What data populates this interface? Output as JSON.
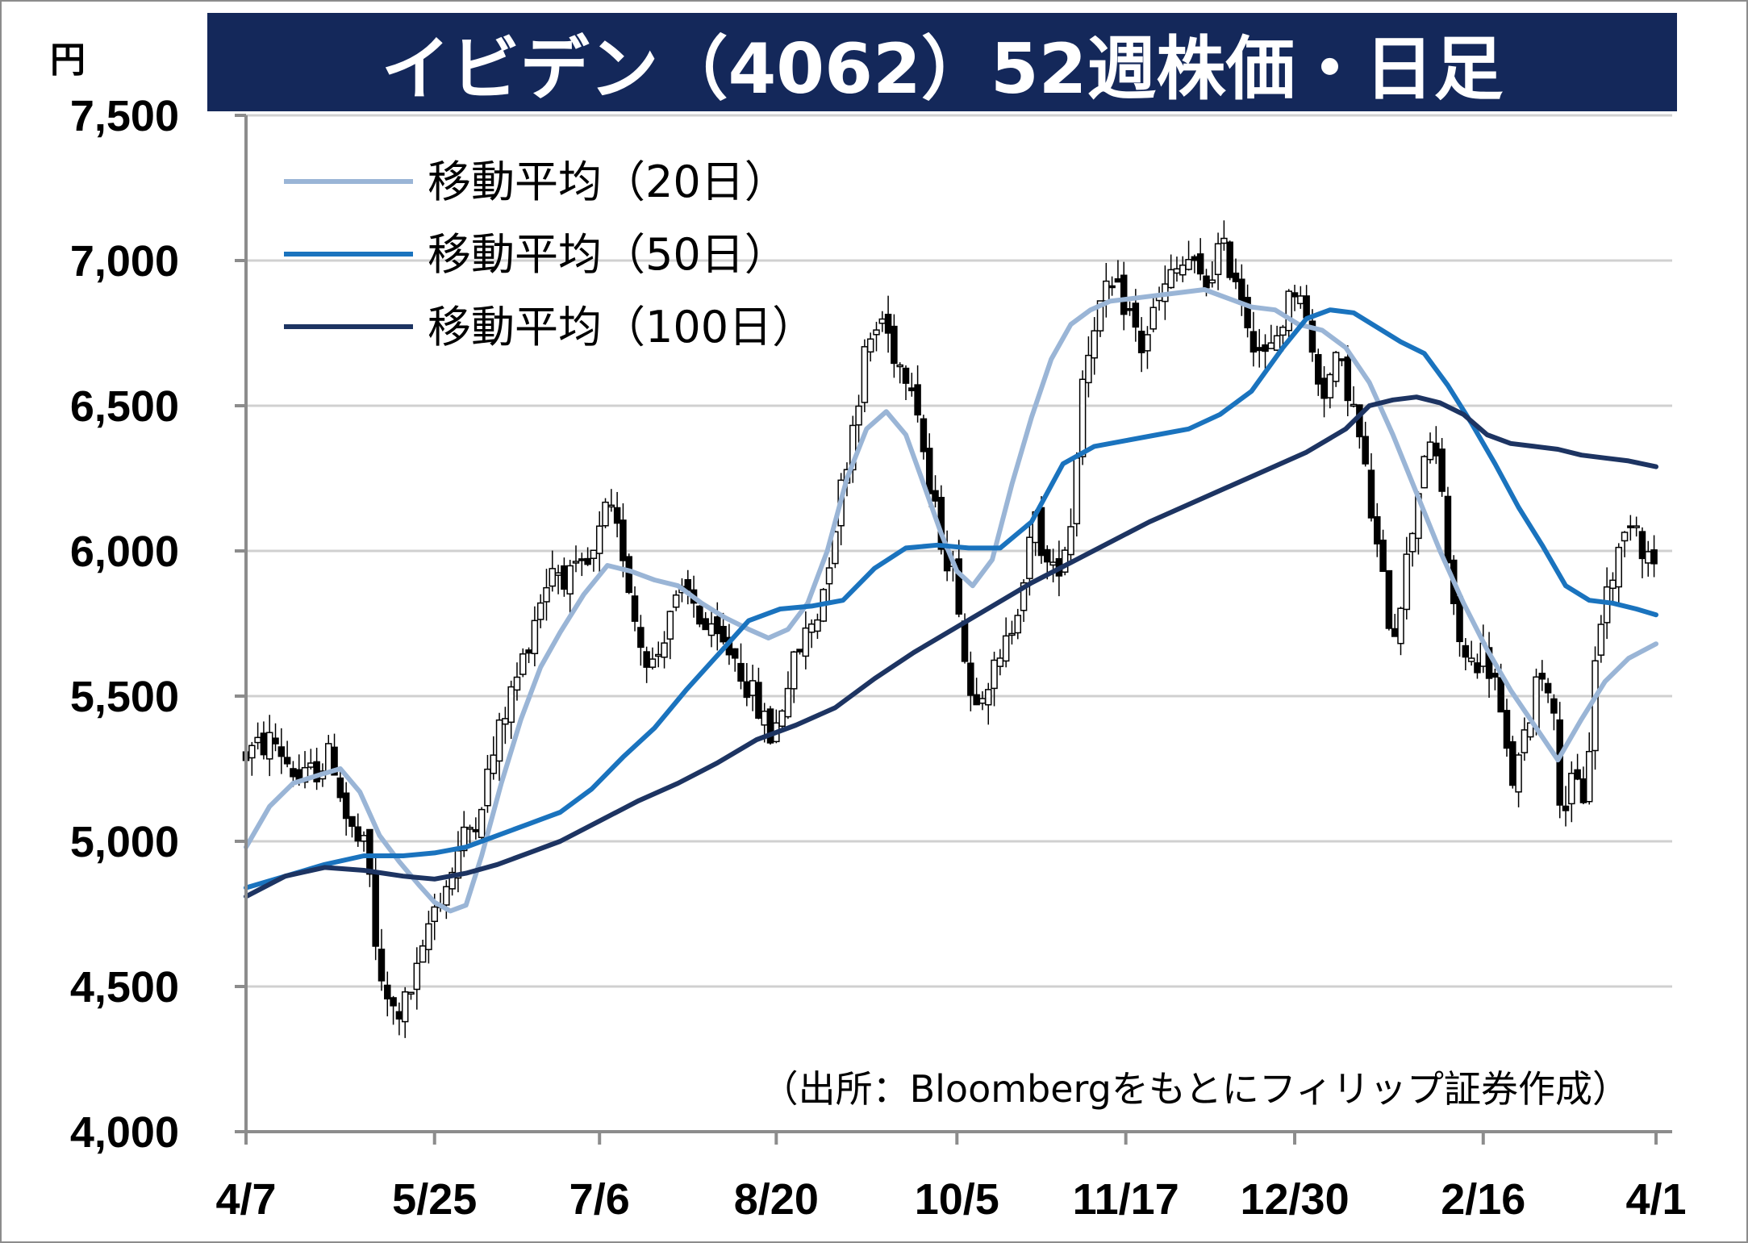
{
  "title": "イビデン（4062）52週株価・日足",
  "unit_label": "円",
  "source_note": "（出所：Bloombergをもとにフィリップ証券作成）",
  "chart_data": {
    "type": "candlestick",
    "title": "イビデン（4062）52週株価・日足",
    "ylabel": "円",
    "ylim": [
      4000,
      7500
    ],
    "yticks": [
      4000,
      4500,
      5000,
      5500,
      6000,
      6500,
      7000,
      7500
    ],
    "ytick_labels": [
      "4,000",
      "4,500",
      "5,000",
      "5,500",
      "6,000",
      "6,500",
      "7,000",
      "7,500"
    ],
    "x_range_days": [
      0,
      359
    ],
    "xticks": [
      {
        "label": "4/7",
        "day": 0
      },
      {
        "label": "5/25",
        "day": 48
      },
      {
        "label": "7/6",
        "day": 90
      },
      {
        "label": "8/20",
        "day": 135
      },
      {
        "label": "10/5",
        "day": 181
      },
      {
        "label": "11/17",
        "day": 224
      },
      {
        "label": "12/30",
        "day": 267
      },
      {
        "label": "2/16",
        "day": 315
      },
      {
        "label": "4/1",
        "day": 359
      }
    ],
    "grid": true,
    "legend_position": "top-left",
    "price_path": [
      [
        0,
        5300
      ],
      [
        7,
        5350
      ],
      [
        14,
        5200
      ],
      [
        22,
        5300
      ],
      [
        26,
        5050
      ],
      [
        31,
        4950
      ],
      [
        34,
        4500
      ],
      [
        38,
        4400
      ],
      [
        41,
        4450
      ],
      [
        45,
        4600
      ],
      [
        47,
        4750
      ],
      [
        51,
        4850
      ],
      [
        55,
        5000
      ],
      [
        59,
        5100
      ],
      [
        63,
        5300
      ],
      [
        66,
        5450
      ],
      [
        70,
        5600
      ],
      [
        74,
        5800
      ],
      [
        78,
        5950
      ],
      [
        83,
        5900
      ],
      [
        88,
        5950
      ],
      [
        92,
        6150
      ],
      [
        96,
        6000
      ],
      [
        100,
        5700
      ],
      [
        104,
        5600
      ],
      [
        108,
        5800
      ],
      [
        113,
        5850
      ],
      [
        118,
        5700
      ],
      [
        124,
        5650
      ],
      [
        129,
        5500
      ],
      [
        134,
        5350
      ],
      [
        138,
        5550
      ],
      [
        142,
        5700
      ],
      [
        146,
        5800
      ],
      [
        150,
        6100
      ],
      [
        154,
        6400
      ],
      [
        158,
        6700
      ],
      [
        162,
        6800
      ],
      [
        166,
        6650
      ],
      [
        170,
        6600
      ],
      [
        174,
        6200
      ],
      [
        178,
        6000
      ],
      [
        181,
        5900
      ],
      [
        184,
        5500
      ],
      [
        188,
        5550
      ],
      [
        192,
        5600
      ],
      [
        196,
        5800
      ],
      [
        201,
        6100
      ],
      [
        205,
        5900
      ],
      [
        208,
        6000
      ],
      [
        210,
        6100
      ],
      [
        213,
        6600
      ],
      [
        216,
        6800
      ],
      [
        220,
        6900
      ],
      [
        224,
        6850
      ],
      [
        228,
        6700
      ],
      [
        232,
        6850
      ],
      [
        236,
        6950
      ],
      [
        240,
        7000
      ],
      [
        244,
        6900
      ],
      [
        248,
        7050
      ],
      [
        252,
        6950
      ],
      [
        256,
        6750
      ],
      [
        260,
        6650
      ],
      [
        264,
        6800
      ],
      [
        268,
        6950
      ],
      [
        271,
        6700
      ],
      [
        274,
        6550
      ],
      [
        278,
        6650
      ],
      [
        281,
        6550
      ],
      [
        284,
        6350
      ],
      [
        288,
        6000
      ],
      [
        292,
        5700
      ],
      [
        296,
        6000
      ],
      [
        300,
        6350
      ],
      [
        304,
        6300
      ],
      [
        307,
        5800
      ],
      [
        311,
        5600
      ],
      [
        315,
        5650
      ],
      [
        318,
        5550
      ],
      [
        322,
        5200
      ],
      [
        325,
        5300
      ],
      [
        329,
        5600
      ],
      [
        332,
        5550
      ],
      [
        335,
        5100
      ],
      [
        338,
        5200
      ],
      [
        341,
        5150
      ],
      [
        344,
        5700
      ],
      [
        347,
        5900
      ],
      [
        350,
        6000
      ],
      [
        353,
        6150
      ],
      [
        356,
        6000
      ],
      [
        359,
        5950
      ]
    ],
    "series": [
      {
        "name": "移動平均（20日）",
        "color": "#9ab5d6",
        "x": [
          0,
          6,
          12,
          19,
          24,
          29,
          34,
          39,
          44,
          48,
          52,
          56,
          60,
          65,
          70,
          75,
          80,
          86,
          92,
          98,
          104,
          110,
          116,
          122,
          128,
          133,
          138,
          143,
          148,
          153,
          158,
          163,
          168,
          172,
          177,
          181,
          185,
          190,
          195,
          200,
          205,
          210,
          215,
          220,
          226,
          232,
          238,
          244,
          250,
          256,
          262,
          268,
          274,
          280,
          286,
          292,
          298,
          304,
          310,
          316,
          322,
          328,
          334,
          340,
          346,
          352,
          359
        ],
        "values": [
          4980,
          5120,
          5200,
          5230,
          5250,
          5170,
          5020,
          4930,
          4850,
          4790,
          4760,
          4780,
          4950,
          5200,
          5420,
          5600,
          5720,
          5850,
          5950,
          5930,
          5900,
          5880,
          5820,
          5770,
          5730,
          5700,
          5730,
          5820,
          6000,
          6250,
          6420,
          6480,
          6400,
          6250,
          6060,
          5930,
          5880,
          5970,
          6230,
          6460,
          6660,
          6780,
          6830,
          6860,
          6870,
          6880,
          6890,
          6900,
          6870,
          6840,
          6830,
          6780,
          6760,
          6700,
          6580,
          6400,
          6200,
          6000,
          5820,
          5660,
          5520,
          5400,
          5280,
          5420,
          5550,
          5630,
          5680
        ]
      },
      {
        "name": "移動平均（50日）",
        "color": "#1a73be",
        "x": [
          0,
          10,
          20,
          30,
          40,
          48,
          56,
          64,
          72,
          80,
          88,
          96,
          104,
          112,
          120,
          128,
          136,
          144,
          152,
          160,
          168,
          176,
          184,
          192,
          200,
          208,
          216,
          224,
          232,
          240,
          248,
          256,
          264,
          270,
          276,
          282,
          288,
          294,
          300,
          306,
          312,
          318,
          324,
          330,
          336,
          342,
          348,
          354,
          359
        ],
        "values": [
          4840,
          4880,
          4920,
          4950,
          4950,
          4960,
          4980,
          5020,
          5060,
          5100,
          5180,
          5290,
          5390,
          5520,
          5640,
          5760,
          5800,
          5810,
          5830,
          5940,
          6010,
          6020,
          6010,
          6010,
          6100,
          6300,
          6360,
          6380,
          6400,
          6420,
          6470,
          6550,
          6700,
          6800,
          6830,
          6820,
          6770,
          6720,
          6680,
          6570,
          6440,
          6300,
          6150,
          6020,
          5880,
          5830,
          5820,
          5800,
          5780
        ]
      },
      {
        "name": "移動平均（100日）",
        "color": "#1d3462",
        "x": [
          0,
          10,
          20,
          30,
          40,
          48,
          56,
          64,
          72,
          80,
          90,
          100,
          110,
          120,
          130,
          140,
          150,
          160,
          170,
          180,
          190,
          200,
          210,
          220,
          230,
          240,
          250,
          260,
          270,
          280,
          286,
          292,
          298,
          304,
          310,
          316,
          322,
          328,
          334,
          340,
          346,
          352,
          359
        ],
        "values": [
          4810,
          4880,
          4910,
          4900,
          4880,
          4870,
          4890,
          4920,
          4960,
          5000,
          5070,
          5140,
          5200,
          5270,
          5350,
          5400,
          5460,
          5560,
          5650,
          5730,
          5810,
          5890,
          5960,
          6030,
          6100,
          6160,
          6220,
          6280,
          6340,
          6420,
          6500,
          6520,
          6530,
          6510,
          6470,
          6400,
          6370,
          6360,
          6350,
          6330,
          6320,
          6310,
          6290
        ]
      }
    ]
  },
  "icons": {
    "candle_up_color": "#ffffff",
    "candle_down_color": "#000000",
    "grid_color": "#d0d0d0",
    "axis_color": "#8c8c8c"
  }
}
